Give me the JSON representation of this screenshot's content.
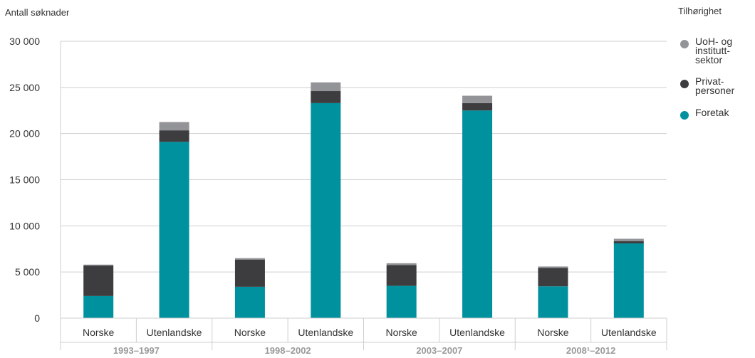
{
  "chart_data": {
    "type": "bar",
    "stacked": true,
    "ylabel": "Antall søknader",
    "ylim": [
      0,
      30000
    ],
    "yticks": [
      "0",
      "5 000",
      "10 000",
      "15 000",
      "20 000",
      "25 000",
      "30 000"
    ],
    "ytick_values": [
      0,
      5000,
      10000,
      15000,
      20000,
      25000,
      30000
    ],
    "grid": true,
    "legend_position": "right",
    "legend_title": "Tilhørighet",
    "groups": [
      {
        "label": "1993–1997",
        "categories": [
          "Norske",
          "Utenlandske"
        ]
      },
      {
        "label": "1998–2002",
        "categories": [
          "Norske",
          "Utenlandske"
        ]
      },
      {
        "label": "2003–2007",
        "categories": [
          "Norske",
          "Utenlandske"
        ]
      },
      {
        "label": "2008¹–2012",
        "categories": [
          "Norske",
          "Utenlandske"
        ]
      }
    ],
    "series": [
      {
        "name": "Foretak",
        "color": "#00919f",
        "values": [
          2400,
          19100,
          3400,
          23300,
          3500,
          22500,
          3450,
          8100
        ]
      },
      {
        "name": "Privat-\npersoner",
        "color": "#3d3d3f",
        "values": [
          3300,
          1250,
          2950,
          1300,
          2250,
          800,
          2000,
          250
        ]
      },
      {
        "name": "UoH- og\ninstitutt-\nsektor",
        "color": "#929497",
        "values": [
          100,
          900,
          150,
          950,
          200,
          800,
          150,
          250
        ]
      }
    ],
    "legend_order": [
      "UoH- og\ninstitutt-\nsektor",
      "Privat-\npersoner",
      "Foretak"
    ]
  }
}
